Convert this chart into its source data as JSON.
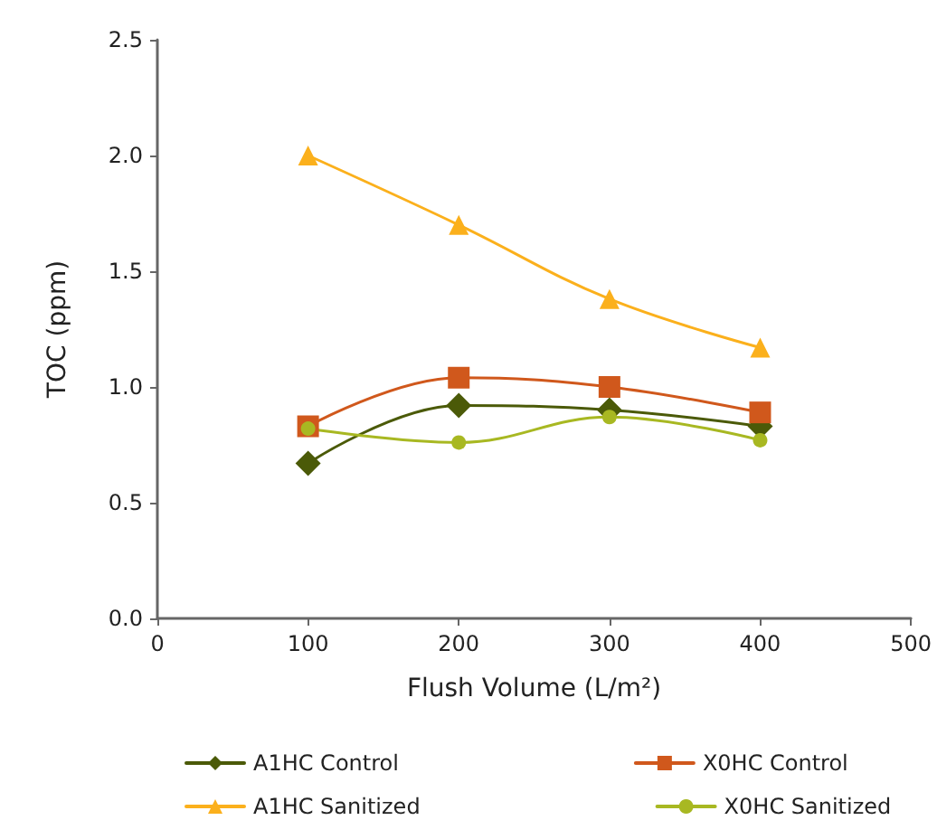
{
  "chart_data": {
    "type": "line",
    "xlabel": "Flush Volume (L/m²)",
    "ylabel": "TOC (ppm)",
    "x": [
      100,
      200,
      300,
      400
    ],
    "series": [
      {
        "name": "A1HC Control",
        "color": "#4b5a08",
        "marker": "diamond",
        "values": [
          0.67,
          0.92,
          0.9,
          0.83
        ]
      },
      {
        "name": "X0HC Control",
        "color": "#d0581c",
        "marker": "square",
        "values": [
          0.83,
          1.04,
          1.0,
          0.89
        ]
      },
      {
        "name": "A1HC Sanitized",
        "color": "#fbb01c",
        "marker": "triangle",
        "values": [
          2.0,
          1.7,
          1.38,
          1.17
        ]
      },
      {
        "name": "X0HC Sanitized",
        "color": "#a8b822",
        "marker": "circle",
        "values": [
          0.82,
          0.76,
          0.87,
          0.77
        ]
      }
    ],
    "xlim": [
      0,
      500
    ],
    "xticks": [
      0,
      100,
      200,
      300,
      400,
      500
    ],
    "ylim": [
      0,
      2.5
    ],
    "yticks": [
      {
        "value": 0,
        "label": "0.0"
      },
      {
        "value": 0.5,
        "label": "0.5"
      },
      {
        "value": 1,
        "label": "1.0"
      },
      {
        "value": 1.5,
        "label": "1.5"
      },
      {
        "value": 2,
        "label": "2.0"
      },
      {
        "value": 2.5,
        "label": "2.5"
      }
    ],
    "grid": false,
    "legend": "bottom",
    "line_style": "solid"
  }
}
